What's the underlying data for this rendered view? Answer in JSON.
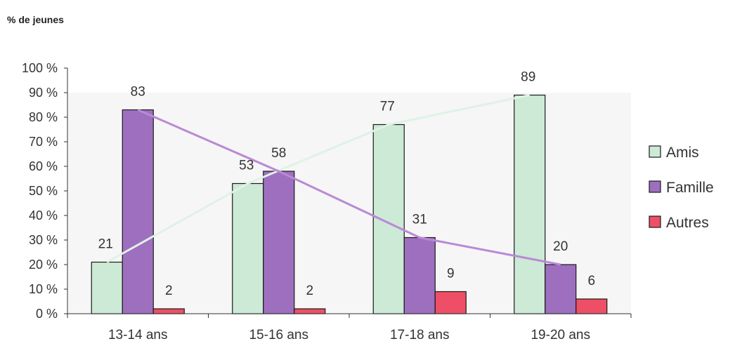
{
  "chart_data": {
    "type": "bar",
    "ylabel": "% de jeunes",
    "categories": [
      "13-14 ans",
      "15-16 ans",
      "17-18 ans",
      "19-20 ans"
    ],
    "ylim": [
      0,
      100
    ],
    "yticks": [
      0,
      10,
      20,
      30,
      40,
      50,
      60,
      70,
      80,
      90,
      100
    ],
    "ytick_labels": [
      "0 %",
      "10 %",
      "20 %",
      "30 %",
      "40 %",
      "50 %",
      "60 %",
      "70 %",
      "80 %",
      "90 %",
      "100 %"
    ],
    "series": [
      {
        "name": "Amis",
        "values": [
          21,
          53,
          77,
          89
        ],
        "value_labels": [
          "21",
          "53",
          "77",
          "89"
        ],
        "color": "#ccead6",
        "line_color": "#dff2e6"
      },
      {
        "name": "Famille",
        "values": [
          83,
          58,
          31,
          20
        ],
        "value_labels": [
          "83",
          "58",
          "31",
          "20"
        ],
        "color": "#9f6fbf",
        "line_color": "#b98ad6"
      },
      {
        "name": "Autres",
        "values": [
          2,
          2,
          9,
          6
        ],
        "value_labels": [
          "2",
          "2",
          "9",
          "6"
        ],
        "color": "#ee4f66"
      }
    ],
    "trend_lines": [
      "Amis",
      "Famille"
    ],
    "legend_position": "right",
    "grid": false,
    "plot_background": "#f6f6f6"
  }
}
